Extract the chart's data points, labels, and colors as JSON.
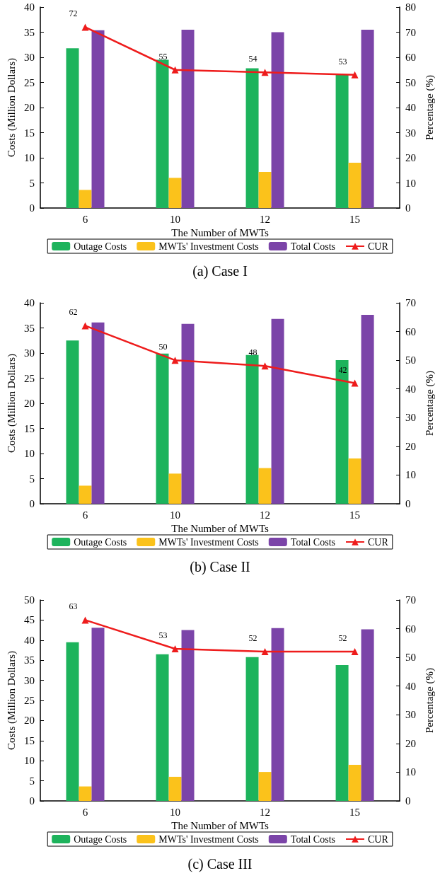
{
  "chart_data": [
    {
      "type": "bar",
      "title": "(a) Case I",
      "xlabel": "The Number of MWTs",
      "ylabel": "Costs (Million Dollars)",
      "y2label": "Percentage (%)",
      "categories": [
        "6",
        "10",
        "12",
        "15"
      ],
      "ylim": [
        0,
        40
      ],
      "yticks": [
        0,
        5,
        10,
        15,
        20,
        25,
        30,
        35,
        40
      ],
      "y2lim": [
        0,
        80
      ],
      "y2ticks": [
        0,
        10,
        20,
        30,
        40,
        50,
        60,
        70,
        80
      ],
      "grid": false,
      "legend": "bottom",
      "series": [
        {
          "name": "Outage Costs",
          "color": "#1db35c",
          "values": [
            31.8,
            29.5,
            27.8,
            26.5
          ]
        },
        {
          "name": "MWTs' Investment Costs",
          "color": "#fbc21b",
          "values": [
            3.6,
            6.0,
            7.2,
            9.0
          ]
        },
        {
          "name": "Total Costs",
          "color": "#7b44a8",
          "values": [
            35.4,
            35.5,
            35.0,
            35.5
          ]
        },
        {
          "name": "CUR",
          "type": "line",
          "axis": "y2",
          "color": "#ee1c1c",
          "marker": "triangle",
          "data_labels": true,
          "values": [
            72,
            55,
            54,
            53
          ]
        }
      ]
    },
    {
      "type": "bar",
      "title": "(b) Case II",
      "xlabel": "The Number of MWTs",
      "ylabel": "Costs (Million Dollars)",
      "y2label": "Percentage (%)",
      "categories": [
        "6",
        "10",
        "12",
        "15"
      ],
      "ylim": [
        0,
        40
      ],
      "yticks": [
        0,
        5,
        10,
        15,
        20,
        25,
        30,
        35,
        40
      ],
      "y2lim": [
        0,
        70
      ],
      "y2ticks": [
        0,
        10,
        20,
        30,
        40,
        50,
        60,
        70
      ],
      "grid": false,
      "legend": "bottom",
      "series": [
        {
          "name": "Outage Costs",
          "color": "#1db35c",
          "values": [
            32.5,
            29.9,
            29.6,
            28.6
          ]
        },
        {
          "name": "MWTs' Investment Costs",
          "color": "#fbc21b",
          "values": [
            3.6,
            6.0,
            7.1,
            9.0
          ]
        },
        {
          "name": "Total Costs",
          "color": "#7b44a8",
          "values": [
            36.1,
            35.8,
            36.8,
            37.6
          ]
        },
        {
          "name": "CUR",
          "type": "line",
          "axis": "y2",
          "color": "#ee1c1c",
          "marker": "triangle",
          "data_labels": true,
          "values": [
            62,
            50,
            48,
            42
          ]
        }
      ]
    },
    {
      "type": "bar",
      "title": "(c) Case III",
      "xlabel": "The Number of MWTs",
      "ylabel": "Costs (Million Dollars)",
      "y2label": "Percentage (%)",
      "categories": [
        "6",
        "10",
        "12",
        "15"
      ],
      "ylim": [
        0,
        50
      ],
      "yticks": [
        0,
        5,
        10,
        15,
        20,
        25,
        30,
        35,
        40,
        45,
        50
      ],
      "y2lim": [
        0,
        70
      ],
      "y2ticks": [
        0,
        10,
        20,
        30,
        40,
        50,
        60,
        70
      ],
      "grid": false,
      "legend": "bottom",
      "series": [
        {
          "name": "Outage Costs",
          "color": "#1db35c",
          "values": [
            39.5,
            36.5,
            35.8,
            33.8
          ]
        },
        {
          "name": "MWTs' Investment Costs",
          "color": "#fbc21b",
          "values": [
            3.6,
            6.0,
            7.2,
            9.0
          ]
        },
        {
          "name": "Total Costs",
          "color": "#7b44a8",
          "values": [
            43.1,
            42.5,
            43.0,
            42.7
          ]
        },
        {
          "name": "CUR",
          "type": "line",
          "axis": "y2",
          "color": "#ee1c1c",
          "marker": "triangle",
          "data_labels": true,
          "values": [
            63,
            53,
            52,
            52
          ]
        }
      ]
    }
  ]
}
